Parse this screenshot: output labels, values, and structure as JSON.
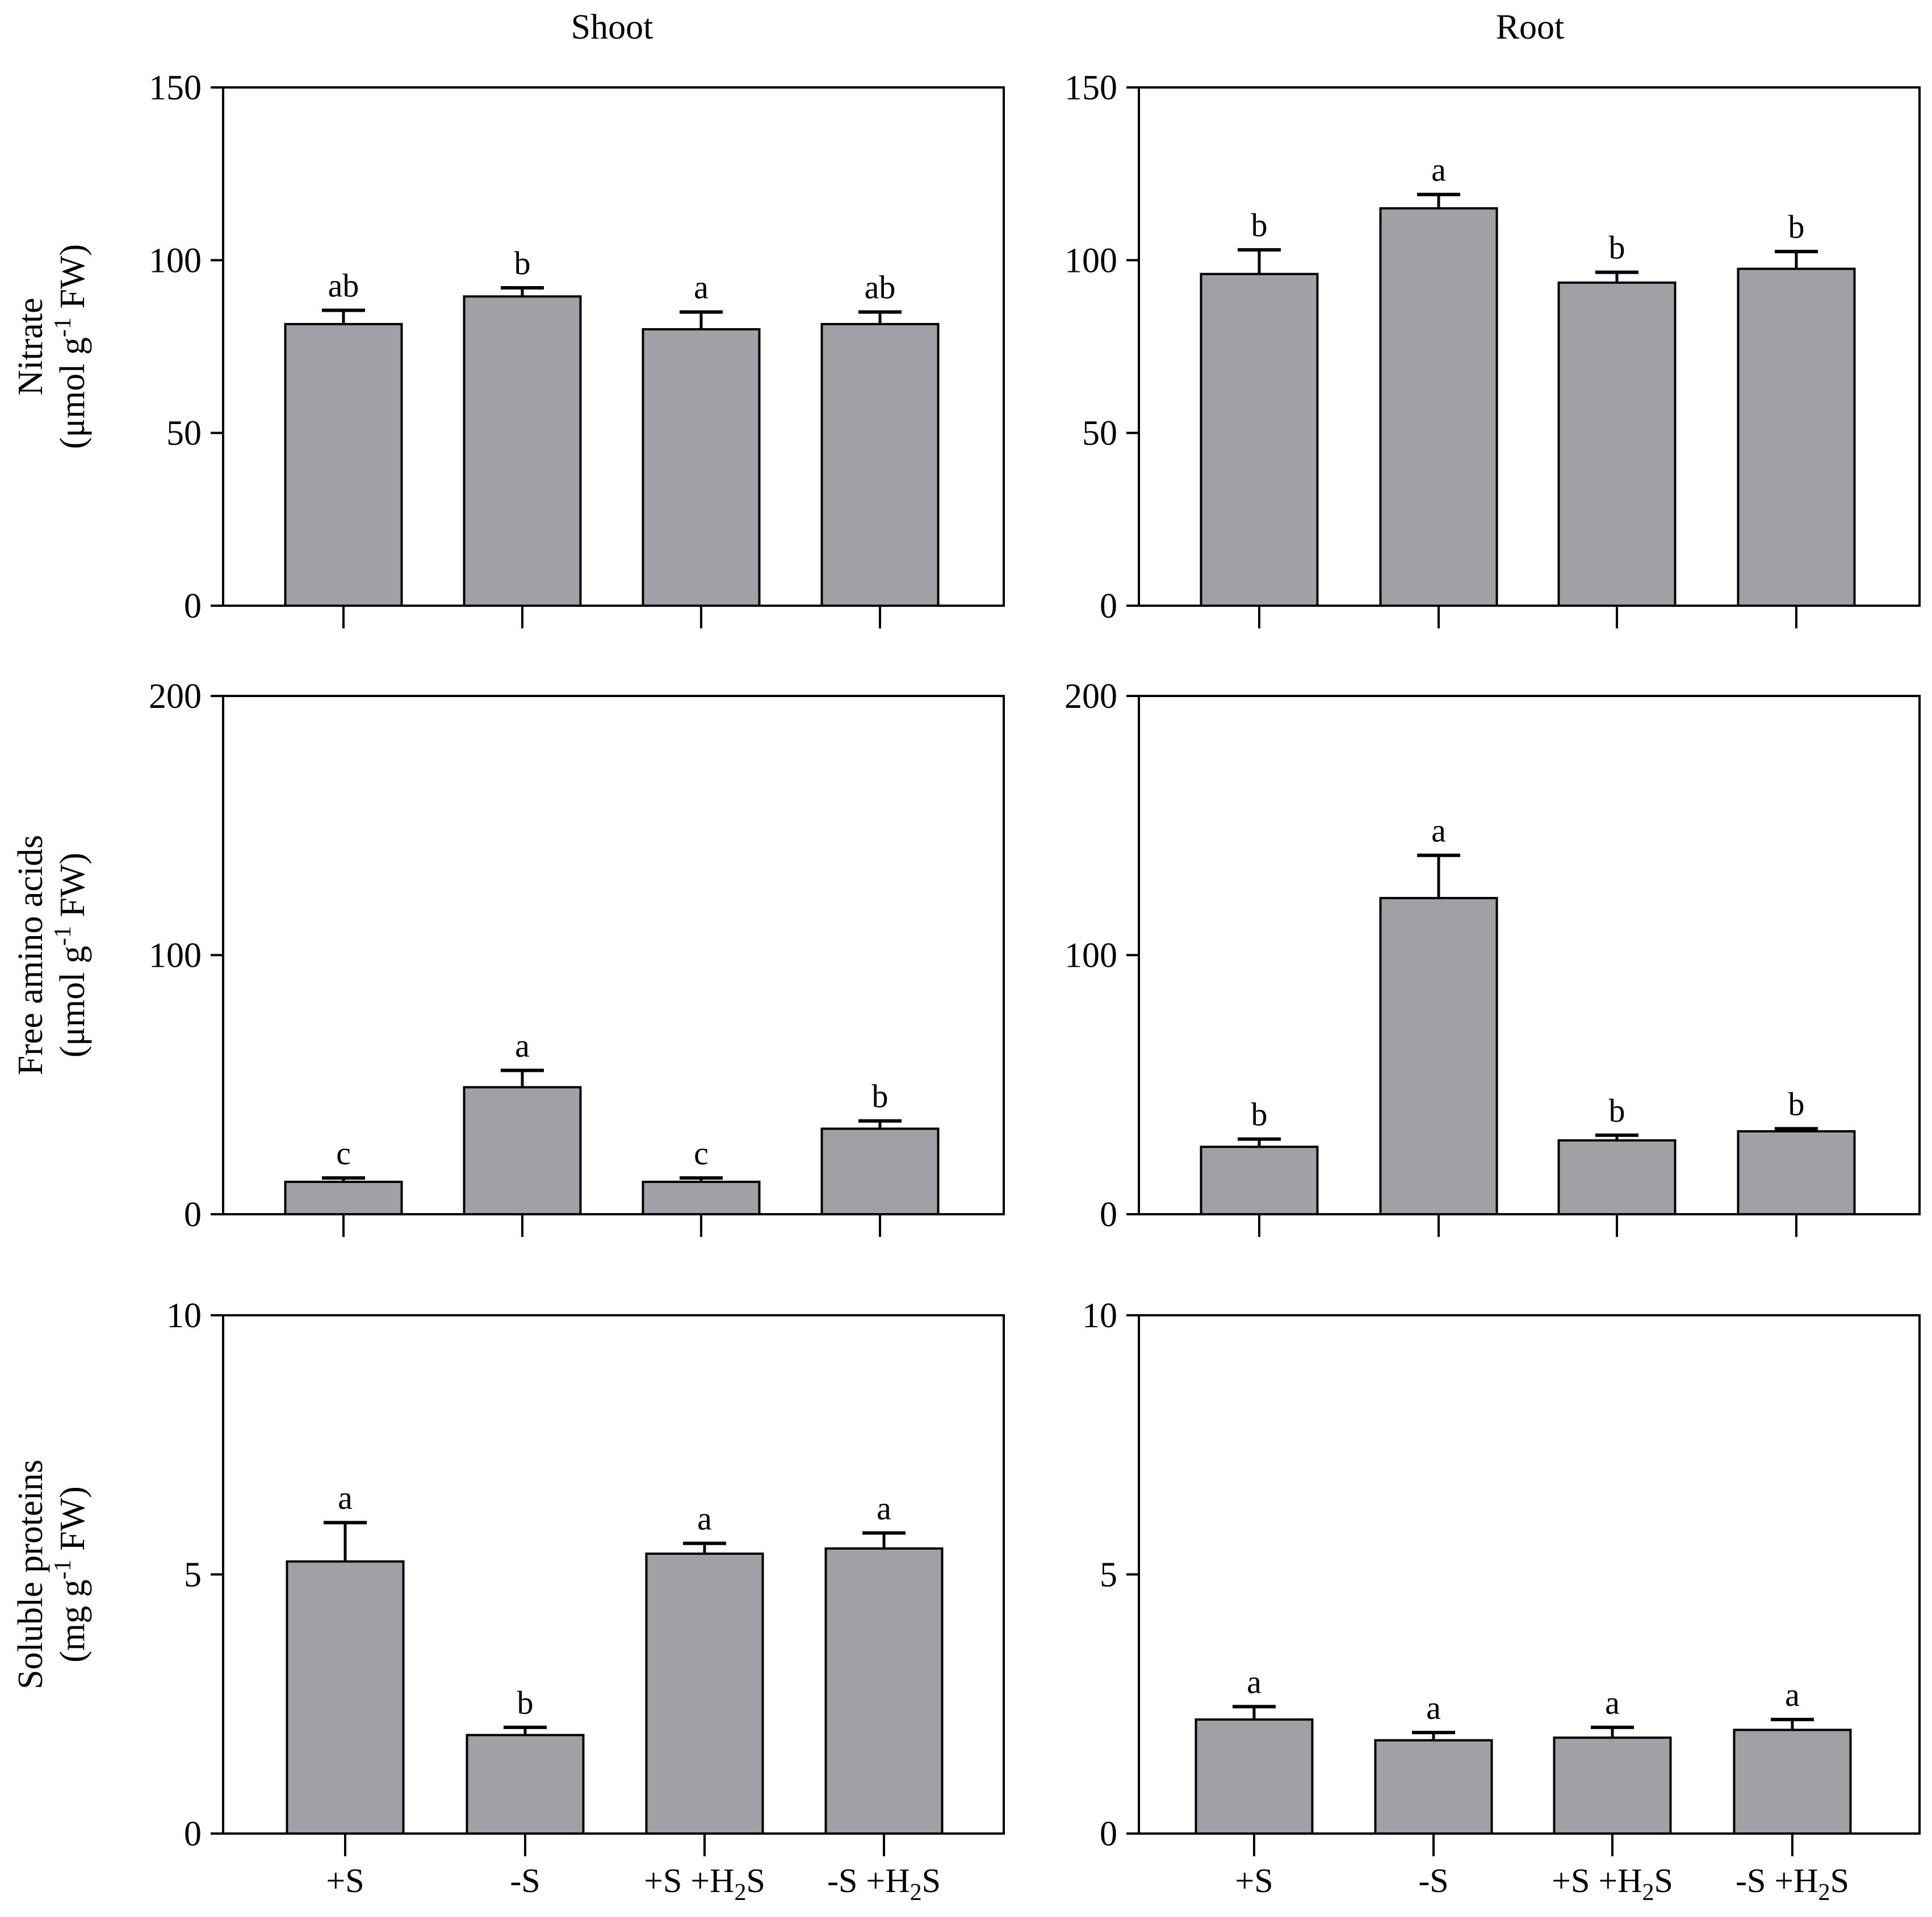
{
  "columns": [
    "Shoot",
    "Root"
  ],
  "categories": [
    {
      "main": "+S",
      "sub": "",
      "tail": ""
    },
    {
      "main": "-S",
      "sub": "",
      "tail": ""
    },
    {
      "main": "+S +H",
      "sub": "2",
      "tail": "S"
    },
    {
      "main": "-S +H",
      "sub": "2",
      "tail": "S"
    }
  ],
  "colors": {
    "bar": "#a2a0a6",
    "stroke": "#000000"
  },
  "chart_data": [
    {
      "type": "bar",
      "id": "nitrate-shoot",
      "column": "Shoot",
      "ylabel": {
        "line1": "Nitrate",
        "line2_pre": "(μmol g",
        "sup": "-1",
        "line2_post": " FW)"
      },
      "ylim": [
        0,
        150
      ],
      "yticks": [
        0,
        50,
        100,
        150
      ],
      "categories": [
        "+S",
        "-S",
        "+S +H2S",
        "-S +H2S"
      ],
      "values": [
        81.5,
        89.5,
        80,
        81.5
      ],
      "errors": [
        4,
        2.5,
        5,
        3.5
      ],
      "letters": [
        "ab",
        "b",
        "a",
        "ab"
      ]
    },
    {
      "type": "bar",
      "id": "nitrate-root",
      "column": "Root",
      "ylim": [
        0,
        150
      ],
      "yticks": [
        0,
        50,
        100,
        150
      ],
      "categories": [
        "+S",
        "-S",
        "+S +H2S",
        "-S +H2S"
      ],
      "values": [
        96,
        115,
        93.5,
        97.5
      ],
      "errors": [
        7,
        4,
        3,
        5
      ],
      "letters": [
        "b",
        "a",
        "b",
        "b"
      ]
    },
    {
      "type": "bar",
      "id": "amino-shoot",
      "column": "Shoot",
      "ylabel": {
        "line1": "Free amino acids",
        "line2_pre": "(μmol g",
        "sup": "-1",
        "line2_post": " FW)"
      },
      "ylim": [
        0,
        200
      ],
      "yticks": [
        0,
        100,
        200
      ],
      "categories": [
        "+S",
        "-S",
        "+S +H2S",
        "-S +H2S"
      ],
      "values": [
        12.5,
        49,
        12.5,
        33
      ],
      "errors": [
        1.5,
        6.5,
        1.5,
        3
      ],
      "letters": [
        "c",
        "a",
        "c",
        "b"
      ]
    },
    {
      "type": "bar",
      "id": "amino-root",
      "column": "Root",
      "ylim": [
        0,
        200
      ],
      "yticks": [
        0,
        100,
        200
      ],
      "categories": [
        "+S",
        "-S",
        "+S +H2S",
        "-S +H2S"
      ],
      "values": [
        26,
        122,
        28.5,
        32
      ],
      "errors": [
        3,
        16.5,
        2,
        1
      ],
      "letters": [
        "b",
        "a",
        "b",
        "b"
      ]
    },
    {
      "type": "bar",
      "id": "protein-shoot",
      "column": "Shoot",
      "ylabel": {
        "line1": "Soluble proteins",
        "line2_pre": "(mg g",
        "sup": "-1",
        "line2_post": "  FW)"
      },
      "ylim": [
        0,
        10
      ],
      "yticks": [
        0,
        5,
        10
      ],
      "categories": [
        "+S",
        "-S",
        "+S +H2S",
        "-S +H2S"
      ],
      "values": [
        5.25,
        1.9,
        5.4,
        5.5
      ],
      "errors": [
        0.75,
        0.15,
        0.2,
        0.3
      ],
      "letters": [
        "a",
        "b",
        "a",
        "a"
      ]
    },
    {
      "type": "bar",
      "id": "protein-root",
      "column": "Root",
      "ylim": [
        0,
        10
      ],
      "yticks": [
        0,
        5,
        10
      ],
      "categories": [
        "+S",
        "-S",
        "+S +H2S",
        "-S +H2S"
      ],
      "values": [
        2.2,
        1.8,
        1.85,
        2
      ],
      "errors": [
        0.25,
        0.15,
        0.2,
        0.2
      ],
      "letters": [
        "a",
        "a",
        "a",
        "a"
      ]
    }
  ]
}
